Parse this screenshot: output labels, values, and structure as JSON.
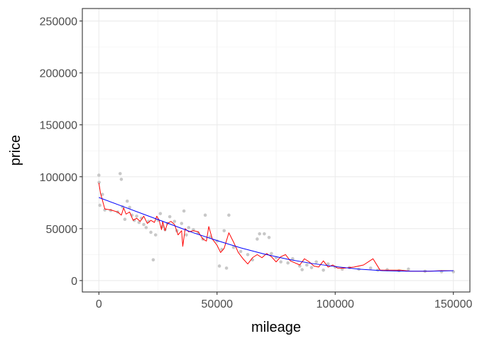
{
  "chart_data": {
    "type": "scatter",
    "title": "",
    "xlabel": "mileage",
    "ylabel": "price",
    "xlim": [
      -7000,
      157000
    ],
    "ylim": [
      -11000,
      262000
    ],
    "x_ticks": [
      0,
      50000,
      100000,
      150000
    ],
    "x_tick_labels": [
      "0",
      "50000",
      "100000",
      "150000"
    ],
    "y_ticks": [
      0,
      50000,
      100000,
      150000,
      200000,
      250000
    ],
    "y_tick_labels": [
      "0",
      "50000",
      "100000",
      "150000",
      "200000",
      "250000"
    ],
    "grid": true,
    "legend": "none",
    "colors": {
      "points": "#c8c8c8",
      "red_line": "#ff0000",
      "blue_line": "#0000ff",
      "grid_major": "#ebebeb",
      "grid_minor": "#f3f3f3",
      "panel_border": "#333333"
    },
    "points": [
      [
        0,
        101500
      ],
      [
        100,
        94500
      ],
      [
        400,
        72500
      ],
      [
        9000,
        103000
      ],
      [
        9500,
        97500
      ],
      [
        1500,
        83000
      ],
      [
        2500,
        68000
      ],
      [
        5000,
        67500
      ],
      [
        8000,
        66000
      ],
      [
        10000,
        71000
      ],
      [
        11000,
        59000
      ],
      [
        12000,
        76500
      ],
      [
        13000,
        70500
      ],
      [
        14000,
        63000
      ],
      [
        15000,
        58000
      ],
      [
        16000,
        62000
      ],
      [
        17000,
        56000
      ],
      [
        18000,
        60000
      ],
      [
        19000,
        54000
      ],
      [
        20000,
        51000
      ],
      [
        21000,
        57000
      ],
      [
        22000,
        46500
      ],
      [
        23000,
        20000
      ],
      [
        24000,
        44000
      ],
      [
        25000,
        58000
      ],
      [
        26000,
        64500
      ],
      [
        27000,
        52000
      ],
      [
        28000,
        49000
      ],
      [
        29000,
        55000
      ],
      [
        30000,
        61500
      ],
      [
        32000,
        57000
      ],
      [
        33000,
        48000
      ],
      [
        35000,
        55000
      ],
      [
        36000,
        67000
      ],
      [
        37000,
        44000
      ],
      [
        38000,
        51000
      ],
      [
        40000,
        49000
      ],
      [
        42000,
        46000
      ],
      [
        44000,
        40000
      ],
      [
        45000,
        63000
      ],
      [
        47000,
        42000
      ],
      [
        50000,
        38000
      ],
      [
        51000,
        14000
      ],
      [
        52000,
        30000
      ],
      [
        53000,
        48000
      ],
      [
        54000,
        12000
      ],
      [
        55000,
        63000
      ],
      [
        57000,
        32000
      ],
      [
        60000,
        28000
      ],
      [
        63000,
        25000
      ],
      [
        65000,
        20000
      ],
      [
        67000,
        40000
      ],
      [
        68000,
        45000
      ],
      [
        70000,
        45000
      ],
      [
        72000,
        41500
      ],
      [
        73000,
        26000
      ],
      [
        75000,
        22000
      ],
      [
        77000,
        18000
      ],
      [
        80000,
        17000
      ],
      [
        82000,
        21000
      ],
      [
        85000,
        14000
      ],
      [
        86000,
        10500
      ],
      [
        88000,
        15000
      ],
      [
        90000,
        12500
      ],
      [
        92000,
        18000
      ],
      [
        95000,
        10000
      ],
      [
        97000,
        16000
      ],
      [
        100000,
        13000
      ],
      [
        103000,
        11000
      ],
      [
        106000,
        12500
      ],
      [
        110000,
        11000
      ],
      [
        115000,
        12000
      ],
      [
        118000,
        10000
      ],
      [
        122000,
        10500
      ],
      [
        127000,
        9500
      ],
      [
        131000,
        11000
      ],
      [
        138000,
        9000
      ],
      [
        145000,
        8500
      ],
      [
        150000,
        8500
      ]
    ],
    "series": [
      {
        "name": "",
        "color": "#ff0000",
        "x": [
          0,
          700,
          2500,
          5000,
          8000,
          9500,
          10500,
          11500,
          13000,
          14500,
          16000,
          17500,
          19000,
          20500,
          22000,
          23500,
          24500,
          25500,
          26500,
          27000,
          28000,
          29000,
          30500,
          32000,
          33500,
          35000,
          35500,
          36500,
          38000,
          40000,
          42000,
          44000,
          45500,
          46500,
          48000,
          50000,
          51500,
          53000,
          55000,
          57000,
          59000,
          61000,
          63000,
          65000,
          67000,
          69000,
          71000,
          73000,
          75000,
          77000,
          79000,
          81000,
          83000,
          85000,
          87000,
          89000,
          91000,
          93000,
          95000,
          97000,
          99000,
          101000,
          104000,
          108000,
          112000,
          116000,
          119000,
          123000,
          128000,
          132000,
          140000,
          145000,
          150000
        ],
        "y": [
          94000,
          84000,
          69000,
          68000,
          66000,
          63000,
          70000,
          64000,
          66000,
          58000,
          60000,
          57000,
          62000,
          55000,
          58000,
          56000,
          62000,
          58000,
          49000,
          57000,
          48000,
          55000,
          57000,
          54000,
          44000,
          48000,
          33000,
          50000,
          47000,
          48000,
          47000,
          40000,
          38000,
          52000,
          40000,
          34000,
          27000,
          31000,
          46000,
          37000,
          27000,
          21000,
          16000,
          22000,
          25000,
          22000,
          26000,
          23000,
          18000,
          23000,
          25000,
          19000,
          17000,
          15000,
          21000,
          18000,
          14000,
          13000,
          19000,
          13000,
          15000,
          12000,
          12000,
          13000,
          15000,
          21000,
          10000,
          10000,
          10000,
          9000,
          9000,
          9500,
          9500
        ]
      },
      {
        "name": "",
        "color": "#0000ff",
        "x": [
          0,
          10000,
          20000,
          30000,
          40000,
          50000,
          60000,
          70000,
          80000,
          90000,
          100000,
          110000,
          120000,
          130000,
          140000,
          150000
        ],
        "y": [
          80000,
          71500,
          63000,
          54500,
          46000,
          38500,
          31500,
          25500,
          20500,
          16500,
          13500,
          11000,
          9500,
          9000,
          9000,
          9500
        ]
      }
    ]
  }
}
